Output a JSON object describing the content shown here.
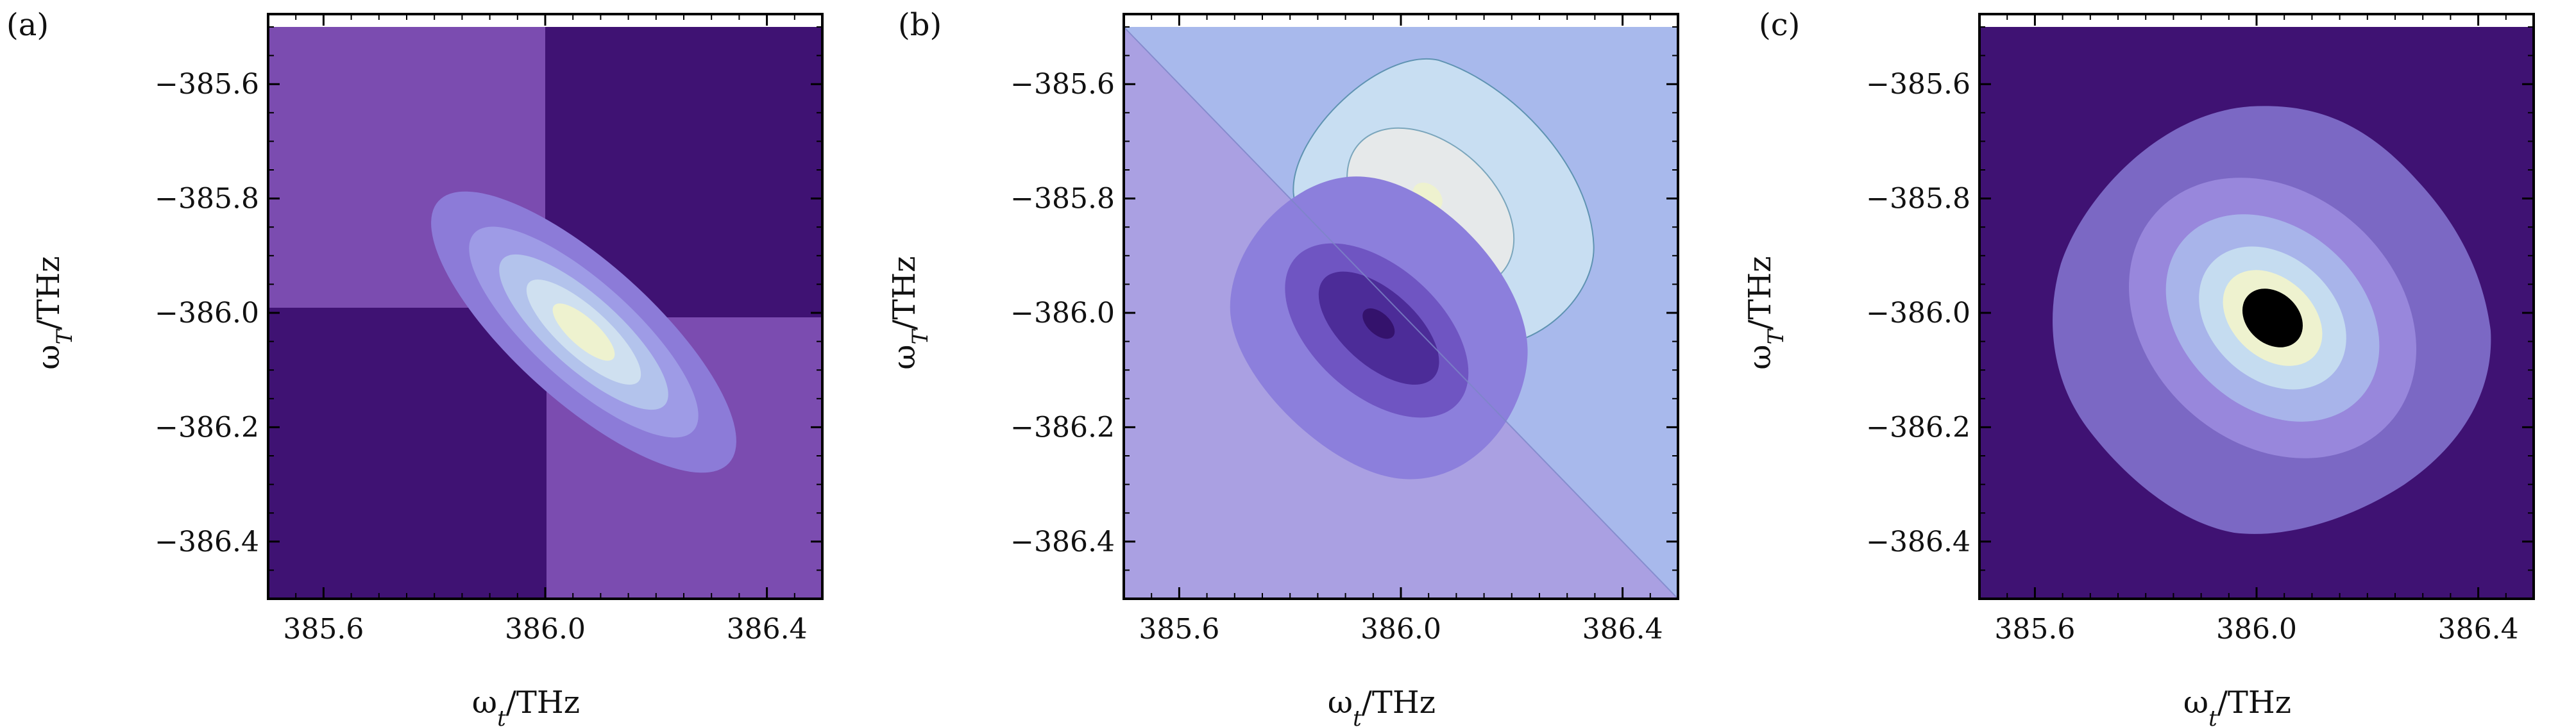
{
  "figure": {
    "background": "#ffffff"
  },
  "chart_data": [
    {
      "type": "heatmap",
      "panel_label": "(a)",
      "xlabel": "ω_t/THz",
      "ylabel": "ω_T/THz",
      "xlim": [
        385.5,
        386.5
      ],
      "ylim": [
        -386.5,
        -385.5
      ],
      "xticks": [
        385.6,
        386.0,
        386.4
      ],
      "xtick_labels": [
        "385.6",
        "386.0",
        "386.4"
      ],
      "yticks": [
        -385.6,
        -385.8,
        -386.0,
        -386.2,
        -386.4
      ],
      "ytick_labels": [
        "−385.6",
        "−385.8",
        "−386.0",
        "−386.2",
        "−386.4"
      ],
      "colors": {
        "dark": "#3f1273",
        "background": "#7b4cb0",
        "levels": [
          "#8c7bd8",
          "#9e9be6",
          "#b3c3ec",
          "#cfe0f0",
          "#eef2cf"
        ]
      },
      "dark_regions": [
        "top-right",
        "bottom-left"
      ]
    },
    {
      "type": "heatmap",
      "panel_label": "(b)",
      "xlabel": "ω_t/THz",
      "ylabel": "ω_T/THz",
      "xlim": [
        385.5,
        386.5
      ],
      "ylim": [
        -386.5,
        -385.5
      ],
      "xticks": [
        385.6,
        386.0,
        386.4
      ],
      "xtick_labels": [
        "385.6",
        "386.0",
        "386.4"
      ],
      "yticks": [
        -385.6,
        -385.8,
        -386.0,
        -386.2,
        -386.4
      ],
      "ytick_labels": [
        "−385.6",
        "−385.8",
        "−386.0",
        "−386.2",
        "−386.4"
      ],
      "colors": {
        "upper_background": "#a8b9ec",
        "lower_background": "#aaa0e2",
        "positive_lobe": [
          "#c8def2",
          "#e6e9ea",
          "#eef2cf"
        ],
        "negative_lobe": [
          "#8c7fdc",
          "#6f55c2",
          "#4c2c98",
          "#34126c"
        ]
      },
      "positive_lobe_center": [
        386.0,
        -385.96
      ],
      "negative_lobe_center": [
        385.92,
        -386.04
      ]
    },
    {
      "type": "heatmap",
      "panel_label": "(c)",
      "xlabel": "ω_t/THz",
      "ylabel": "ω_T/THz",
      "xlim": [
        385.5,
        386.5
      ],
      "ylim": [
        -386.5,
        -385.5
      ],
      "xticks": [
        385.6,
        386.0,
        386.4
      ],
      "xtick_labels": [
        "385.6",
        "386.0",
        "386.4"
      ],
      "yticks": [
        -385.6,
        -385.8,
        -386.0,
        -386.2,
        -386.4
      ],
      "ytick_labels": [
        "−385.6",
        "−385.8",
        "−386.0",
        "−386.2",
        "−386.4"
      ],
      "colors": {
        "background": "#3f1273",
        "levels": [
          "#7b68c4",
          "#9887dc",
          "#a8b4ea",
          "#c5dcf0",
          "#eef2cf"
        ]
      },
      "peak_center": [
        386.0,
        -386.0
      ]
    }
  ]
}
